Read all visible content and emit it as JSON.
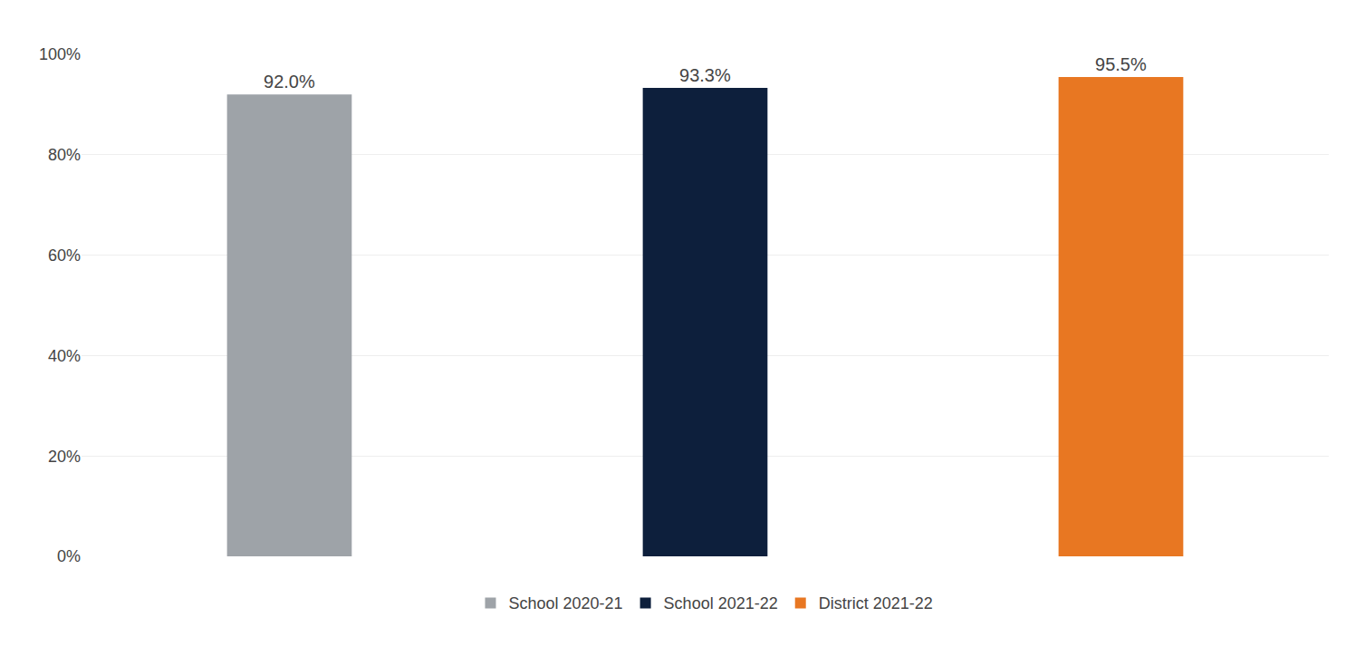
{
  "chart_data": {
    "type": "bar",
    "categories": [
      "School 2020-21",
      "School 2021-22",
      "District 2021-22"
    ],
    "values": [
      0.92,
      0.933,
      0.955
    ],
    "value_labels": [
      "92.0%",
      "93.3%",
      "95.5%"
    ],
    "colors": [
      "#9EA3A8",
      "#0D1F3C",
      "#E87722"
    ],
    "ylim": [
      0,
      1.0
    ],
    "yticks": [
      {
        "value": 0.0,
        "label": "0%"
      },
      {
        "value": 0.2,
        "label": "20%"
      },
      {
        "value": 0.4,
        "label": "40%"
      },
      {
        "value": 0.6,
        "label": "60%"
      },
      {
        "value": 0.8,
        "label": "80%"
      },
      {
        "value": 1.0,
        "label": "100%"
      }
    ],
    "grid": true,
    "data_labels": true,
    "legend": "bottom",
    "tick_labels": "y"
  }
}
